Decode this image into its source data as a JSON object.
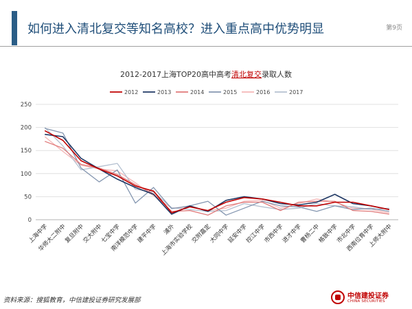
{
  "header": {
    "title": "如何进入清北复交等知名高校？进入重点高中优势明显",
    "page_number": "第9页"
  },
  "chart_data": {
    "type": "line",
    "title": {
      "prefix": "2012-2017上海TOP20高中高考",
      "highlight": "清北复交",
      "suffix": "录取人数",
      "highlight_color": "#c00000"
    },
    "ylim": [
      0,
      250
    ],
    "yticks": [
      0,
      50,
      100,
      150,
      200,
      250
    ],
    "grid": true,
    "legend_position": "top",
    "categories": [
      "上海中学",
      "华师大二附中",
      "复旦附中",
      "交大附中",
      "七宝中学",
      "南洋模范中学",
      "建平中学",
      "浦外",
      "上海市实验学校",
      "交附嘉定",
      "大同中学",
      "延安中学",
      "控江中学",
      "市西中学",
      "进才中学",
      "曹杨二中",
      "格致中学",
      "市北中学",
      "西南位育中学",
      "上师大附中"
    ],
    "series": [
      {
        "name": "2012",
        "color": "#c00000",
        "values": [
          193,
          172,
          128,
          110,
          95,
          73,
          62,
          15,
          28,
          20,
          38,
          48,
          45,
          38,
          30,
          30,
          38,
          38,
          30,
          22
        ]
      },
      {
        "name": "2013",
        "color": "#1f3864",
        "values": [
          185,
          180,
          133,
          110,
          88,
          70,
          55,
          12,
          30,
          18,
          42,
          50,
          45,
          35,
          32,
          38,
          55,
          35,
          30,
          22
        ]
      },
      {
        "name": "2014",
        "color": "#e07878",
        "values": [
          170,
          155,
          120,
          112,
          98,
          76,
          56,
          18,
          20,
          10,
          30,
          38,
          38,
          20,
          38,
          40,
          40,
          20,
          18,
          12
        ]
      },
      {
        "name": "2015",
        "color": "#8496b0",
        "values": [
          198,
          188,
          112,
          82,
          108,
          36,
          70,
          24,
          30,
          40,
          10,
          25,
          40,
          30,
          28,
          18,
          30,
          22,
          25,
          18
        ]
      },
      {
        "name": "2016",
        "color": "#f4b6b6",
        "values": [
          180,
          148,
          118,
          110,
          106,
          80,
          52,
          25,
          28,
          20,
          25,
          40,
          42,
          25,
          35,
          45,
          38,
          25,
          22,
          15
        ]
      },
      {
        "name": "2017",
        "color": "#b4c0d0",
        "values": [
          200,
          160,
          108,
          115,
          122,
          66,
          60,
          26,
          22,
          18,
          20,
          35,
          28,
          22,
          25,
          35,
          30,
          28,
          22,
          25
        ]
      }
    ]
  },
  "source": "资料来源：搜狐教育，中信建投证券研究发展部",
  "logo": {
    "cn": "中信建投证券",
    "en": "CHINA SECURITIES"
  }
}
